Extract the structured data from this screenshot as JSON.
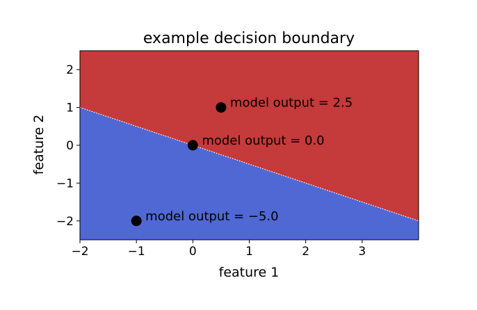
{
  "chart_data": {
    "type": "scatter",
    "title": "example decision boundary",
    "xlabel": "feature 1",
    "ylabel": "feature 2",
    "xlim": [
      -2,
      4
    ],
    "ylim": [
      -2.5,
      2.5
    ],
    "xticks": [
      -2,
      -1,
      0,
      1,
      2,
      3
    ],
    "yticks": [
      -2,
      -1,
      0,
      1,
      2
    ],
    "xtick_labels": [
      "−2",
      "−1",
      "0",
      "1",
      "2",
      "3"
    ],
    "ytick_labels": [
      "−2",
      "−1",
      "0",
      "1",
      "2"
    ],
    "grid": false,
    "boundary": {
      "slope": -0.5,
      "intercept": 0
    },
    "region_colors": {
      "above": "#c53a3a",
      "below": "#5068d4"
    },
    "point_color": "#000000",
    "points": [
      {
        "x": 0.5,
        "y": 1.0,
        "label": "model output = 2.5"
      },
      {
        "x": 0.0,
        "y": 0.0,
        "label": "model output = 0.0"
      },
      {
        "x": -1.0,
        "y": -2.0,
        "label": "model output = −5.0"
      }
    ]
  }
}
